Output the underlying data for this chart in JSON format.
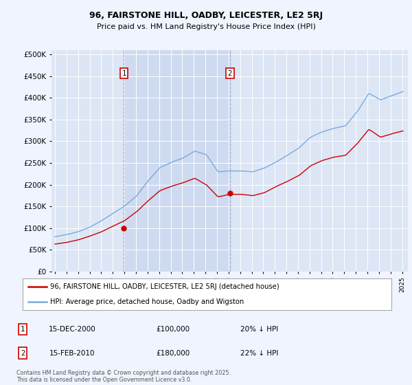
{
  "title_line1": "96, FAIRSTONE HILL, OADBY, LEICESTER, LE2 5RJ",
  "title_line2": "Price paid vs. HM Land Registry's House Price Index (HPI)",
  "background_color": "#f0f4ff",
  "plot_bg_color": "#dde6f5",
  "shade_color": "#ccd9f0",
  "hpi_color": "#7aaadd",
  "price_color": "#cc0000",
  "marker_color": "#cc0000",
  "ylim": [
    0,
    510000
  ],
  "yticks": [
    0,
    50000,
    100000,
    150000,
    200000,
    250000,
    300000,
    350000,
    400000,
    450000,
    500000
  ],
  "xlim_start": 1994.7,
  "xlim_end": 2025.5,
  "legend_label_price": "96, FAIRSTONE HILL, OADBY, LEICESTER, LE2 5RJ (detached house)",
  "legend_label_hpi": "HPI: Average price, detached house, Oadby and Wigston",
  "annotation1_label": "1",
  "annotation1_date": "15-DEC-2000",
  "annotation1_price": "£100,000",
  "annotation1_note": "20% ↓ HPI",
  "annotation2_label": "2",
  "annotation2_date": "15-FEB-2010",
  "annotation2_price": "£180,000",
  "annotation2_note": "22% ↓ HPI",
  "footnote": "Contains HM Land Registry data © Crown copyright and database right 2025.\nThis data is licensed under the Open Government Licence v3.0.",
  "sale1_x": 2000.96,
  "sale1_y": 100000,
  "sale2_x": 2010.12,
  "sale2_y": 180000,
  "vline1_x": 2000.96,
  "vline2_x": 2010.12
}
